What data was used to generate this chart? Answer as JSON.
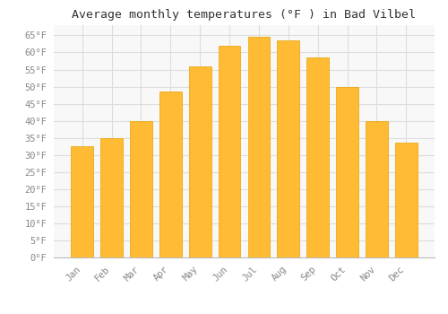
{
  "title": "Average monthly temperatures (°F ) in Bad Vilbel",
  "months": [
    "Jan",
    "Feb",
    "Mar",
    "Apr",
    "May",
    "Jun",
    "Jul",
    "Aug",
    "Sep",
    "Oct",
    "Nov",
    "Dec"
  ],
  "values": [
    32.5,
    35,
    40,
    48.5,
    56,
    62,
    64.5,
    63.5,
    58.5,
    50,
    40,
    33.5
  ],
  "bar_color": "#FFBB33",
  "bar_edge_color": "#E8A000",
  "background_color": "#FFFFFF",
  "plot_bg_color": "#F8F8F8",
  "ylim": [
    0,
    68
  ],
  "yticks": [
    0,
    5,
    10,
    15,
    20,
    25,
    30,
    35,
    40,
    45,
    50,
    55,
    60,
    65
  ],
  "ytick_labels": [
    "0°F",
    "5°F",
    "10°F",
    "15°F",
    "20°F",
    "25°F",
    "30°F",
    "35°F",
    "40°F",
    "45°F",
    "50°F",
    "55°F",
    "60°F",
    "65°F"
  ],
  "title_fontsize": 9.5,
  "tick_fontsize": 7.5,
  "grid_color": "#DDDDDD",
  "tick_label_color": "#888888"
}
